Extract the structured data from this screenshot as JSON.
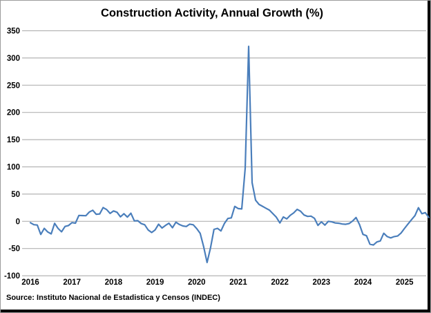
{
  "window": {
    "background": "#ffffff",
    "shadow_border_color": "#000000",
    "frame_border_color": "#9b9b9b"
  },
  "chart": {
    "title": "Construction Activity, Annual Growth (%)",
    "source_note": "Source:  Instituto Nacional de Estadistica y Censos (INDEC)"
  },
  "chart_data": {
    "type": "line",
    "title": "Construction Activity, Annual Growth (%)",
    "series_name": "Construction activity, annual growth (%)",
    "frequency": "monthly",
    "x_start": "2016-01",
    "x_end": "2025-08",
    "x_tick_labels": [
      "2016",
      "2017",
      "2018",
      "2019",
      "2020",
      "2021",
      "2022",
      "2023",
      "2024",
      "2025"
    ],
    "y_ticks": [
      350,
      300,
      250,
      200,
      150,
      100,
      50,
      0,
      -50,
      -100
    ],
    "ylim": [
      -100,
      350
    ],
    "grid": "horizontal",
    "legend": "none",
    "line_color": "#4a7ebb",
    "gridline_color": "#b3b3b3",
    "label_color": "#000000",
    "annotations": {
      "peak": {
        "x": "2021-04",
        "value": 321.3
      },
      "trough": {
        "x": "2020-04",
        "value": -75.6
      }
    },
    "values": [
      -2.5,
      -6.2,
      -6.8,
      -24.1,
      -12.9,
      -19.6,
      -23.1,
      -3.7,
      -13.1,
      -19.3,
      -9.4,
      -7.8,
      -2.4,
      -3.4,
      10.8,
      10.5,
      10.3,
      17.0,
      20.3,
      13.0,
      13.4,
      25.3,
      21.6,
      14.5,
      19.0,
      16.6,
      8.3,
      14.0,
      7.8,
      14.8,
      0.7,
      1.1,
      -4.2,
      -6.4,
      -15.9,
      -20.5,
      -15.7,
      -5.3,
      -12.3,
      -7.5,
      -3.5,
      -11.8,
      -1.7,
      -5.9,
      -8.5,
      -9.5,
      -5.2,
      -6.4,
      -13.5,
      -22.1,
      -46.5,
      -75.6,
      -48.6,
      -14.8,
      -12.9,
      -17.7,
      -3.9,
      5.2,
      6.3,
      27.4,
      23.3,
      22.7,
      97.6,
      321.3,
      70.9,
      38.8,
      31.0,
      27.5,
      24.0,
      20.5,
      14.0,
      7.5,
      -3.0,
      8.0,
      4.5,
      11.0,
      15.5,
      22.0,
      18.5,
      11.5,
      9.0,
      9.5,
      5.5,
      -7.5,
      -1.0,
      -7.0,
      0.0,
      -1.0,
      -3.0,
      -3.5,
      -5.0,
      -5.5,
      -4.0,
      0.5,
      7.0,
      -6.0,
      -24.0,
      -26.5,
      -42.0,
      -43.5,
      -38.0,
      -36.0,
      -22.0,
      -28.0,
      -30.5,
      -28.0,
      -27.0,
      -21.5,
      -13.0,
      -5.0,
      3.0,
      10.5,
      25.0,
      14.0,
      16.0,
      7.0
    ]
  }
}
